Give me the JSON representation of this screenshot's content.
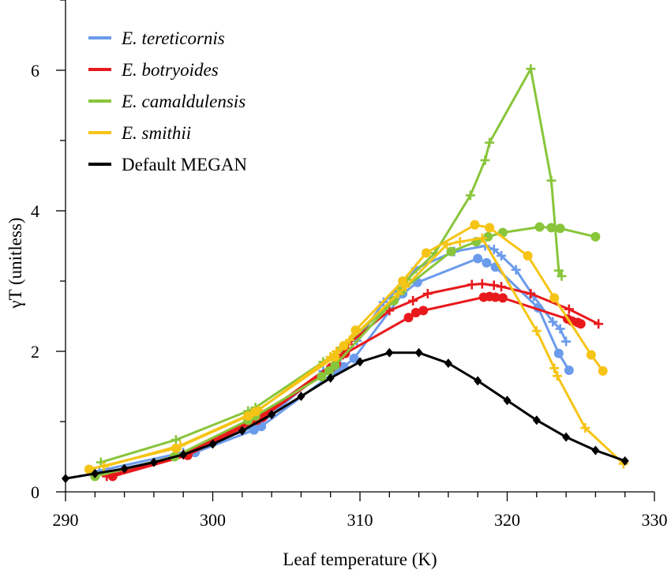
{
  "chart_data": {
    "type": "line",
    "xlabel": "Leaf temperature (K)",
    "ylabel": "γT (unitless)",
    "xlim": [
      290,
      330
    ],
    "ylim": [
      0,
      7
    ],
    "xticks": [
      290,
      300,
      310,
      320,
      330
    ],
    "yticks": [
      0,
      2,
      4,
      6
    ],
    "grid": false,
    "legend_position": "top-left",
    "series": [
      {
        "name": "E. tereticornis",
        "color": "#6B9BEB",
        "markers": [
          {
            "label": "+",
            "x": [
              292.3,
              298.0,
              302.8,
              303.2,
              307.5,
              308.5,
              309.8,
              311.6,
              313.0,
              313.8,
              316.4,
              318.5,
              319.1,
              319.6,
              320.6,
              321.8,
              323.1,
              323.6,
              324.0
            ],
            "y": [
              0.3,
              0.56,
              0.92,
              0.96,
              1.72,
              1.83,
              2.15,
              2.7,
              2.95,
              3.18,
              3.42,
              3.5,
              3.45,
              3.36,
              3.16,
              2.78,
              2.42,
              2.32,
              2.14
            ]
          },
          {
            "label": "o",
            "x": [
              292.0,
              298.8,
              302.8,
              303.3,
              308.4,
              308.9,
              309.6,
              312.9,
              313.9,
              318.0,
              318.6,
              319.2,
              322.1,
              323.5,
              324.2
            ],
            "y": [
              0.24,
              0.56,
              0.88,
              0.93,
              1.72,
              1.78,
              1.9,
              2.82,
              2.98,
              3.32,
              3.26,
              3.2,
              2.62,
              1.97,
              1.73
            ]
          }
        ]
      },
      {
        "name": "E. botryoides",
        "color": "#E8191C",
        "markers": [
          {
            "label": "+",
            "x": [
              292.8,
              298.0,
              303.0,
              303.4,
              308.2,
              308.6,
              309.2,
              312.0,
              313.6,
              314.6,
              317.6,
              318.3,
              319.1,
              319.6,
              321.6,
              324.2,
              326.2
            ],
            "y": [
              0.22,
              0.53,
              1.05,
              1.1,
              1.82,
              1.9,
              2.1,
              2.58,
              2.72,
              2.82,
              2.95,
              2.96,
              2.94,
              2.92,
              2.82,
              2.6,
              2.39
            ]
          },
          {
            "label": "o",
            "x": [
              293.2,
              298.3,
              303.0,
              303.4,
              308.0,
              308.4,
              309.0,
              313.3,
              313.8,
              314.3,
              318.4,
              318.8,
              319.2,
              319.7,
              324.1,
              324.4,
              324.8,
              325.0
            ],
            "y": [
              0.22,
              0.52,
              1.02,
              1.06,
              1.76,
              1.82,
              1.97,
              2.48,
              2.55,
              2.58,
              2.77,
              2.78,
              2.77,
              2.76,
              2.46,
              2.43,
              2.41,
              2.39
            ]
          }
        ]
      },
      {
        "name": "E. camaldulensis",
        "color": "#88C53A",
        "markers": [
          {
            "label": "+",
            "x": [
              292.4,
              297.5,
              302.4,
              302.9,
              307.5,
              308.0,
              308.5,
              312.3,
              313.2,
              315.1,
              317.5,
              318.5,
              318.8,
              321.6,
              323.0,
              323.5,
              323.7
            ],
            "y": [
              0.42,
              0.74,
              1.15,
              1.2,
              1.85,
              1.92,
              2.0,
              2.72,
              3.02,
              3.4,
              4.22,
              4.72,
              4.97,
              6.02,
              4.43,
              3.15,
              3.07
            ]
          },
          {
            "label": "o",
            "x": [
              292.0,
              297.4,
              302.4,
              302.9,
              307.4,
              307.9,
              308.3,
              312.3,
              312.8,
              316.2,
              317.9,
              318.7,
              319.7,
              322.2,
              323.0,
              323.6,
              326.0
            ],
            "y": [
              0.22,
              0.5,
              1.02,
              1.08,
              1.64,
              1.72,
              1.8,
              2.72,
              2.86,
              3.42,
              3.56,
              3.63,
              3.69,
              3.77,
              3.76,
              3.75,
              3.63
            ]
          }
        ]
      },
      {
        "name": "E. smithii",
        "color": "#F6C416",
        "markers": [
          {
            "label": "+",
            "x": [
              292.6,
              297.8,
              302.7,
              303.1,
              308.0,
              308.4,
              309.3,
              312.6,
              313.1,
              315.9,
              316.8,
              318.3,
              322.0,
              323.2,
              323.4,
              325.3,
              327.9
            ],
            "y": [
              0.36,
              0.66,
              1.12,
              1.16,
              1.92,
              2.0,
              2.16,
              2.82,
              2.92,
              3.52,
              3.56,
              3.61,
              2.29,
              1.76,
              1.65,
              0.91,
              0.4
            ]
          },
          {
            "label": "o",
            "x": [
              291.6,
              297.5,
              302.4,
              302.9,
              308.3,
              308.9,
              309.7,
              312.9,
              314.5,
              317.8,
              318.8,
              321.4,
              323.2,
              325.7,
              326.5
            ],
            "y": [
              0.32,
              0.62,
              1.08,
              1.14,
              1.92,
              2.08,
              2.3,
              3.0,
              3.4,
              3.8,
              3.76,
              3.36,
              2.76,
              1.95,
              1.72
            ]
          }
        ]
      },
      {
        "name": "Default MEGAN",
        "color": "#000000",
        "markers": [
          {
            "label": "diamond",
            "x": [
              290,
              292,
              294,
              296,
              298,
              300,
              302,
              304,
              306,
              308,
              310,
              312,
              314,
              316,
              318,
              320,
              322,
              324,
              326,
              328
            ],
            "y": [
              0.19,
              0.26,
              0.33,
              0.42,
              0.53,
              0.68,
              0.87,
              1.1,
              1.36,
              1.62,
              1.85,
              1.98,
              1.98,
              1.83,
              1.58,
              1.3,
              1.02,
              0.78,
              0.59,
              0.44
            ]
          }
        ]
      }
    ]
  }
}
